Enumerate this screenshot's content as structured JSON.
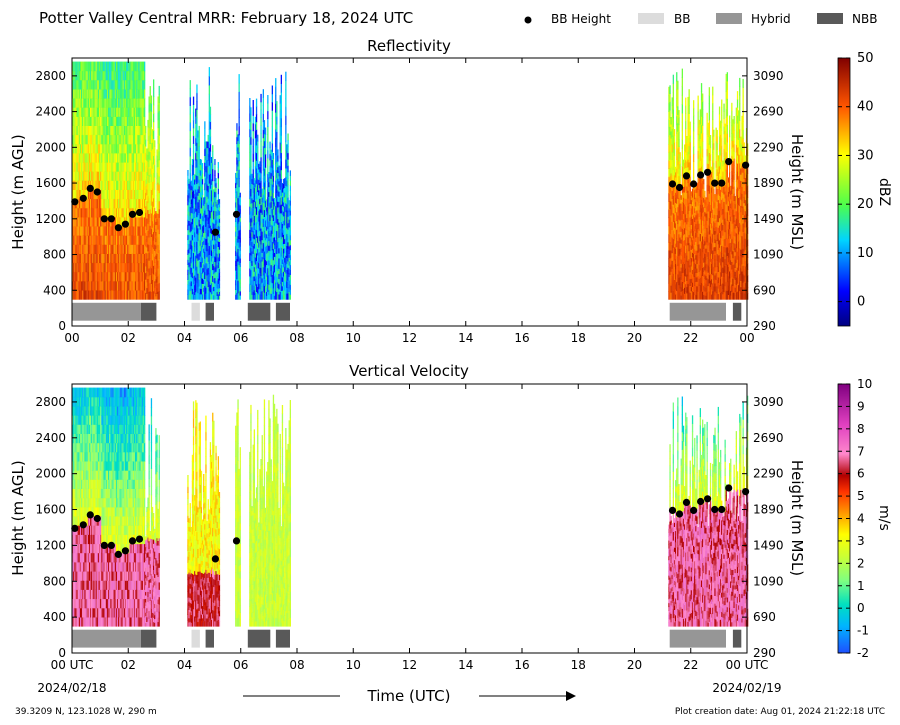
{
  "title": "Potter Valley Central MRR:  February 18, 2024 UTC",
  "legend": [
    {
      "label": "BB Height",
      "kind": "dot",
      "color": "#000000"
    },
    {
      "label": "BB",
      "kind": "box",
      "color": "#dcdcdc"
    },
    {
      "label": "Hybrid",
      "kind": "box",
      "color": "#969696"
    },
    {
      "label": "NBB",
      "kind": "box",
      "color": "#595959"
    }
  ],
  "x_tick_labels": [
    "00",
    "02",
    "04",
    "06",
    "08",
    "10",
    "12",
    "14",
    "16",
    "18",
    "20",
    "22",
    "00"
  ],
  "x_first_label": "00 UTC",
  "x_last_label": "00 UTC",
  "start_date": "2024/02/18",
  "end_date": "2024/02/19",
  "xlabel": "Time (UTC)",
  "footer_left": "39.3209 N, 123.1028 W, 290 m",
  "footer_right": "Plot creation date: Aug 01, 2024 21:22:18 UTC",
  "chart_data": [
    {
      "type": "heatmap",
      "title": "Reflectivity",
      "ylabel_left": "Height (m AGL)",
      "ylabel_right": "Height (m MSL)",
      "xlim": [
        0,
        24
      ],
      "ylim": [
        0,
        3000
      ],
      "y_ticks": [
        0,
        400,
        800,
        1200,
        1600,
        2000,
        2400,
        2800
      ],
      "y_ticks_right": [
        290,
        690,
        1090,
        1490,
        1890,
        2290,
        2690,
        3090
      ],
      "colorbar": {
        "label": "dBZ",
        "min": -5,
        "max": 50,
        "ticks": [
          0,
          10,
          20,
          30,
          40,
          50
        ]
      },
      "bb_height": {
        "x": [
          0.1,
          0.4,
          0.65,
          0.9,
          1.15,
          1.4,
          1.65,
          1.9,
          2.15,
          2.4,
          5.1,
          5.85,
          21.35,
          21.6,
          21.85,
          22.1,
          22.35,
          22.6,
          22.85,
          23.1,
          23.35,
          23.95
        ],
        "y": [
          1390,
          1430,
          1540,
          1500,
          1200,
          1200,
          1100,
          1140,
          1250,
          1270,
          1050,
          1250,
          1590,
          1550,
          1680,
          1590,
          1690,
          1720,
          1600,
          1600,
          1840,
          1800
        ]
      },
      "bb_segments": [
        {
          "type": "Hybrid",
          "start": 0.0,
          "end": 2.45
        },
        {
          "type": "NBB",
          "start": 2.45,
          "end": 3.0
        },
        {
          "type": "BB",
          "start": 4.25,
          "end": 4.55
        },
        {
          "type": "NBB",
          "start": 4.75,
          "end": 5.05
        },
        {
          "type": "NBB",
          "start": 6.25,
          "end": 7.05
        },
        {
          "type": "NBB",
          "start": 7.25,
          "end": 7.75
        },
        {
          "type": "Hybrid",
          "start": 21.25,
          "end": 23.25
        },
        {
          "type": "NBB",
          "start": 23.5,
          "end": 23.8
        }
      ],
      "echo_spans": [
        {
          "start": 0.0,
          "end": 3.1
        },
        {
          "start": 4.1,
          "end": 5.25
        },
        {
          "start": 5.8,
          "end": 6.0
        },
        {
          "start": 6.3,
          "end": 7.75
        },
        {
          "start": 21.2,
          "end": 24.0
        }
      ]
    },
    {
      "type": "heatmap",
      "title": "Vertical Velocity",
      "ylabel_left": "Height (m AGL)",
      "ylabel_right": "Height (m MSL)",
      "xlim": [
        0,
        24
      ],
      "ylim": [
        0,
        3000
      ],
      "y_ticks": [
        0,
        400,
        800,
        1200,
        1600,
        2000,
        2400,
        2800
      ],
      "y_ticks_right": [
        290,
        690,
        1090,
        1490,
        1890,
        2290,
        2690,
        3090
      ],
      "colorbar": {
        "label": "m/s",
        "min": -2,
        "max": 10,
        "ticks": [
          -2,
          -1,
          0,
          1,
          2,
          3,
          4,
          5,
          6,
          7,
          8,
          9,
          10
        ]
      },
      "bb_height": {
        "x": [
          0.1,
          0.4,
          0.65,
          0.9,
          1.15,
          1.4,
          1.65,
          1.9,
          2.15,
          2.4,
          5.1,
          5.85,
          21.35,
          21.6,
          21.85,
          22.1,
          22.35,
          22.6,
          22.85,
          23.1,
          23.35,
          23.95
        ],
        "y": [
          1390,
          1430,
          1540,
          1500,
          1200,
          1200,
          1100,
          1140,
          1250,
          1270,
          1050,
          1250,
          1590,
          1550,
          1680,
          1590,
          1690,
          1720,
          1600,
          1600,
          1840,
          1800
        ]
      },
      "bb_segments": [
        {
          "type": "Hybrid",
          "start": 0.0,
          "end": 2.45
        },
        {
          "type": "NBB",
          "start": 2.45,
          "end": 3.0
        },
        {
          "type": "BB",
          "start": 4.25,
          "end": 4.55
        },
        {
          "type": "NBB",
          "start": 4.75,
          "end": 5.05
        },
        {
          "type": "NBB",
          "start": 6.25,
          "end": 7.05
        },
        {
          "type": "NBB",
          "start": 7.25,
          "end": 7.75
        },
        {
          "type": "Hybrid",
          "start": 21.25,
          "end": 23.25
        },
        {
          "type": "NBB",
          "start": 23.5,
          "end": 23.8
        }
      ],
      "echo_spans": [
        {
          "start": 0.0,
          "end": 3.1
        },
        {
          "start": 4.1,
          "end": 5.25
        },
        {
          "start": 5.8,
          "end": 6.0
        },
        {
          "start": 6.3,
          "end": 7.75
        },
        {
          "start": 21.2,
          "end": 24.0
        }
      ]
    }
  ]
}
